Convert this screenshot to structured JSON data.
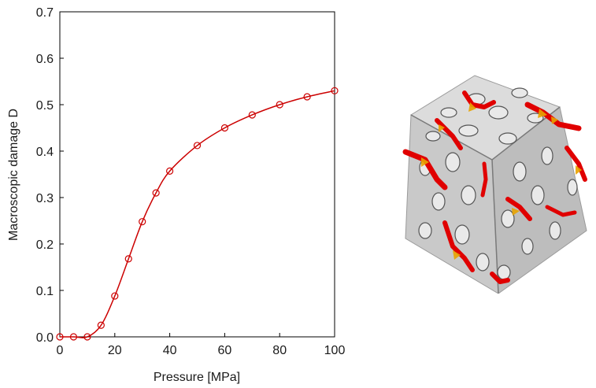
{
  "chart_data": {
    "type": "line",
    "title": "",
    "xlabel": "Pressure [MPa]",
    "ylabel": "Macroscopic damage D",
    "xlim": [
      0,
      100
    ],
    "ylim": [
      0,
      0.7
    ],
    "xticks": [
      "0",
      "20",
      "40",
      "60",
      "80",
      "100"
    ],
    "yticks": [
      "0.0",
      "0.1",
      "0.2",
      "0.3",
      "0.4",
      "0.5",
      "0.6",
      "0.7"
    ],
    "grid": false,
    "legend": "none",
    "series": [
      {
        "color": "#cc0000",
        "marker": "open-circle",
        "x": [
          0,
          5,
          10,
          15,
          20,
          25,
          30,
          35,
          40,
          50,
          60,
          70,
          80,
          90,
          100
        ],
        "y": [
          0.0,
          0.0,
          0.0,
          0.025,
          0.088,
          0.168,
          0.248,
          0.31,
          0.357,
          0.412,
          0.45,
          0.478,
          0.5,
          0.517,
          0.53
        ]
      }
    ]
  },
  "figure": {
    "colors": {
      "cube_gray": "#cfcfcf",
      "damage_red": "#e00000",
      "damage_orange": "#e8a300"
    }
  }
}
